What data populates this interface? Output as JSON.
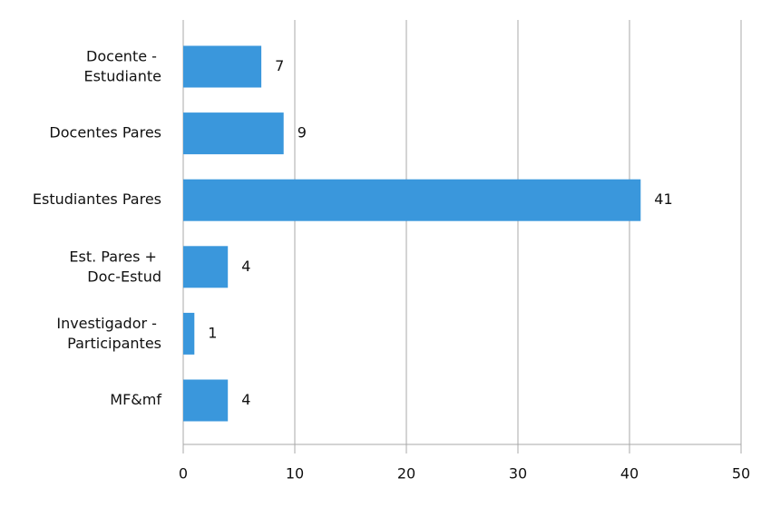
{
  "chart_data": {
    "type": "bar",
    "orientation": "horizontal",
    "categories": [
      "Docente - Estudiante",
      "Docentes Pares",
      "Estudiantes Pares",
      "Est. Pares + Doc-Estud",
      "Investigador - Participantes",
      "MF&mf"
    ],
    "values": [
      7,
      9,
      41,
      4,
      1,
      4
    ],
    "color": "#3a97dc",
    "xlim": [
      0,
      50
    ],
    "xticks": [
      0,
      10,
      20,
      30,
      40,
      50
    ],
    "grid": true
  }
}
